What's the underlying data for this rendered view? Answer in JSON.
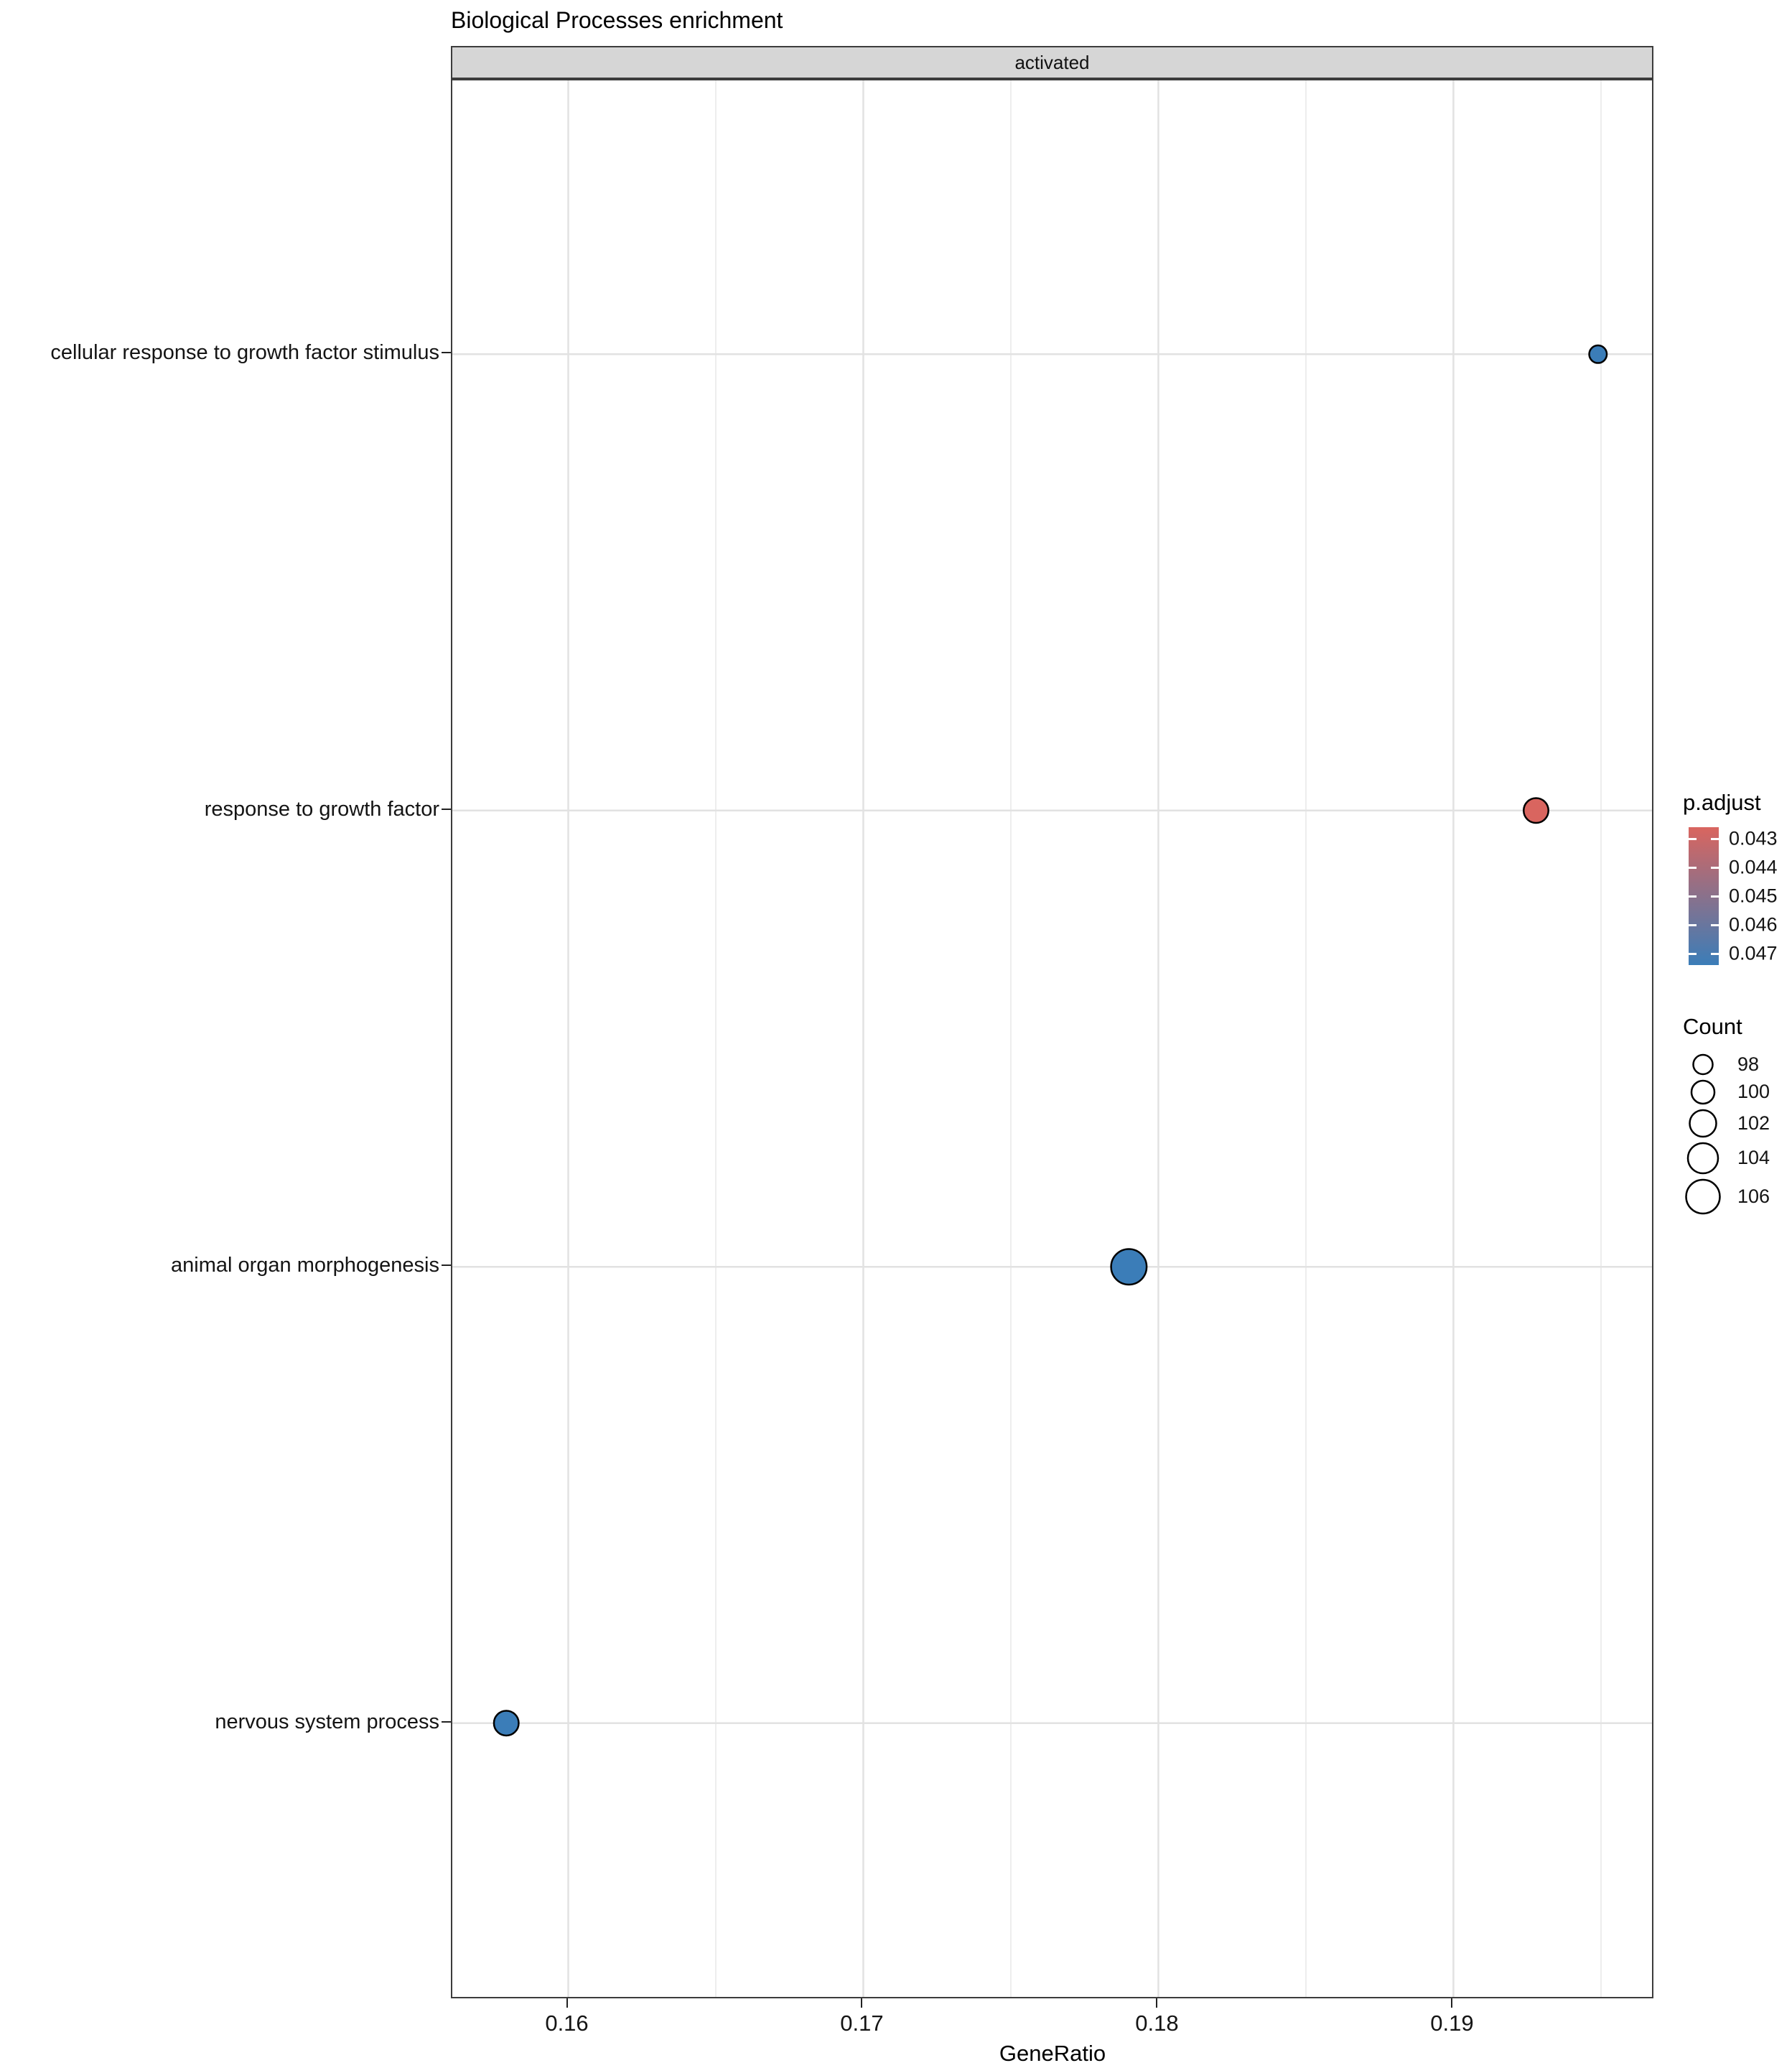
{
  "title": "Biological Processes enrichment",
  "facet": {
    "label": "activated"
  },
  "axes": {
    "x_title": "GeneRatio",
    "x_tick_labels": [
      "0.16",
      "0.17",
      "0.18",
      "0.19"
    ],
    "y_categories": [
      "cellular response to growth factor stimulus",
      "response to growth factor",
      "animal organ morphogenesis",
      "nervous system process"
    ]
  },
  "chart_data": {
    "type": "scatter",
    "title": "Biological Processes enrichment",
    "facet": "activated",
    "xlabel": "GeneRatio",
    "ylabel": "",
    "xlim": [
      0.15607,
      0.19673
    ],
    "x_major_ticks": [
      0.16,
      0.17,
      0.18,
      0.19
    ],
    "x_minor_ticks": [
      0.165,
      0.175,
      0.185,
      0.195
    ],
    "grid": true,
    "legend_position": "right",
    "points": [
      {
        "term": "cellular response to growth factor stimulus",
        "gene_ratio": 0.1949,
        "count": 97,
        "p_adjust": 0.047
      },
      {
        "term": "response to growth factor",
        "gene_ratio": 0.1928,
        "count": 101,
        "p_adjust": 0.043
      },
      {
        "term": "animal organ morphogenesis",
        "gene_ratio": 0.179,
        "count": 107,
        "p_adjust": 0.047
      },
      {
        "term": "nervous system process",
        "gene_ratio": 0.1579,
        "count": 101,
        "p_adjust": 0.047
      }
    ]
  },
  "legend": {
    "color": {
      "title": "p.adjust",
      "tick_labels": [
        "0.043",
        "0.044",
        "0.045",
        "0.046",
        "0.047"
      ],
      "tick_values": [
        0.043,
        0.044,
        0.045,
        0.046,
        0.047
      ],
      "bar_domain": [
        0.0426,
        0.0474
      ],
      "low_hex": "#D9655F",
      "high_hex": "#3B7DB8"
    },
    "size": {
      "title": "Count",
      "entries": [
        98,
        100,
        102,
        104,
        106
      ]
    }
  },
  "colors": {
    "point_stroke": "#000000",
    "grid_major": "#e2e2e2",
    "grid_minor": "#ededed",
    "panel_border": "#3c3c3c",
    "strip_bg": "#d6d6d6"
  }
}
